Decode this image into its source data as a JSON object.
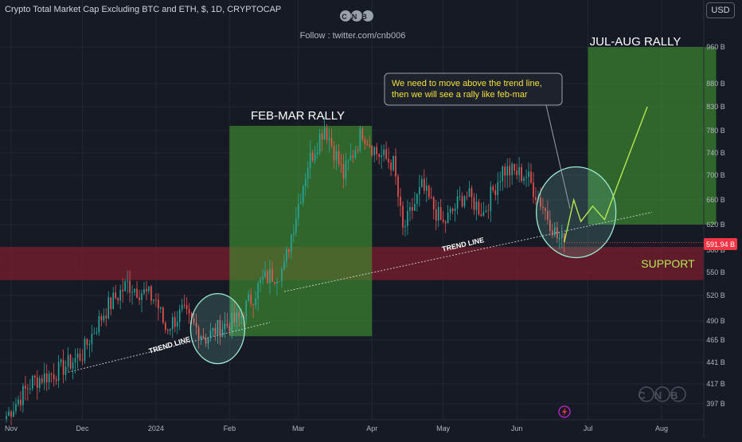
{
  "header": {
    "title": "Crypto Total Market Cap Excluding BTC and ETH, $, 1D, CRYPTOCAP",
    "logo_text": "CNB",
    "follow": "Follow : twitter.com/cnb006",
    "currency_button": "USD"
  },
  "annotations": {
    "feb_mar_label": "FEB-MAR RALLY",
    "jul_aug_label": "JUL-AUG RALLY",
    "support_label": "SUPPORT",
    "trend_line_label_1": "TREND LINE",
    "trend_line_label_2": "TREND LINE",
    "callout_line_1": "We need to move above the trend line,",
    "callout_line_2": "then we will see a rally like feb-mar",
    "watermark": "CNB"
  },
  "colors": {
    "background": "#161a25",
    "up_candle": "#26a69a",
    "down_candle": "#ef5350",
    "rally_box": "#3f8f2f",
    "support_zone": "#7a1e2c",
    "annotation_green": "#b5e853",
    "price_tag": "#f23645"
  },
  "chart_data": {
    "type": "candlestick",
    "title": "Crypto Total Market Cap Excluding BTC and ETH, $, 1D, CRYPTOCAP",
    "xlabel": "",
    "ylabel": "",
    "x_ticks": [
      "Nov",
      "Dec",
      "2024",
      "Feb",
      "Mar",
      "Apr",
      "May",
      "Jun",
      "Jul",
      "Aug"
    ],
    "y_ticks": [
      "397 B",
      "417 B",
      "441 B",
      "465 B",
      "490 B",
      "520 B",
      "550 B",
      "580 B",
      "620 B",
      "660 B",
      "700 B",
      "740 B",
      "780 B",
      "830 B",
      "880 B",
      "960 B"
    ],
    "current_price_label": "591.94 B",
    "current_price": 591.94,
    "support_zone": [
      540,
      585
    ],
    "grid": true,
    "series": [
      {
        "keypoints": [
          [
            "2023-10-30",
            385
          ],
          [
            "2023-11-10",
            420
          ],
          [
            "2023-11-20",
            430
          ],
          [
            "2023-12-01",
            450
          ],
          [
            "2023-12-10",
            500
          ],
          [
            "2023-12-20",
            535
          ],
          [
            "2024-01-01",
            515
          ],
          [
            "2024-01-05",
            480
          ],
          [
            "2024-01-12",
            500
          ],
          [
            "2024-01-22",
            468
          ],
          [
            "2024-01-27",
            480
          ],
          [
            "2024-02-05",
            492
          ],
          [
            "2024-02-15",
            540
          ],
          [
            "2024-02-24",
            555
          ],
          [
            "2024-03-05",
            720
          ],
          [
            "2024-03-12",
            790
          ],
          [
            "2024-03-20",
            700
          ],
          [
            "2024-03-28",
            780
          ],
          [
            "2024-04-03",
            740
          ],
          [
            "2024-04-10",
            720
          ],
          [
            "2024-04-14",
            610
          ],
          [
            "2024-04-22",
            680
          ],
          [
            "2024-05-01",
            620
          ],
          [
            "2024-05-10",
            670
          ],
          [
            "2024-05-18",
            640
          ],
          [
            "2024-05-26",
            710
          ],
          [
            "2024-06-05",
            700
          ],
          [
            "2024-06-12",
            650
          ],
          [
            "2024-06-18",
            600
          ],
          [
            "2024-06-21",
            591.94
          ]
        ]
      }
    ],
    "rally_boxes": [
      {
        "label": "FEB-MAR RALLY",
        "x": [
          "2024-02-01",
          "2024-04-01"
        ],
        "y": [
          470,
          790
        ]
      },
      {
        "label": "JUL-AUG RALLY",
        "x": [
          "2024-07-01",
          "2024-08-24"
        ],
        "y": [
          620,
          960
        ]
      }
    ],
    "trend_lines": [
      {
        "label": "TREND LINE",
        "x": [
          "2023-11-25",
          "2024-02-18"
        ],
        "y": [
          430,
          488
        ]
      },
      {
        "label": "TREND LINE",
        "x": [
          "2024-02-24",
          "2024-07-28"
        ],
        "y": [
          525,
          640
        ]
      }
    ],
    "projection": {
      "x": [
        "2024-06-21",
        "2024-06-25",
        "2024-06-28",
        "2024-07-03",
        "2024-07-08",
        "2024-07-15",
        "2024-07-26"
      ],
      "y": [
        591.94,
        660,
        625,
        650,
        628,
        700,
        830
      ]
    },
    "circles": [
      {
        "center": [
          "2024-01-27",
          480
        ]
      },
      {
        "center": [
          "2024-06-26",
          640
        ]
      }
    ]
  }
}
